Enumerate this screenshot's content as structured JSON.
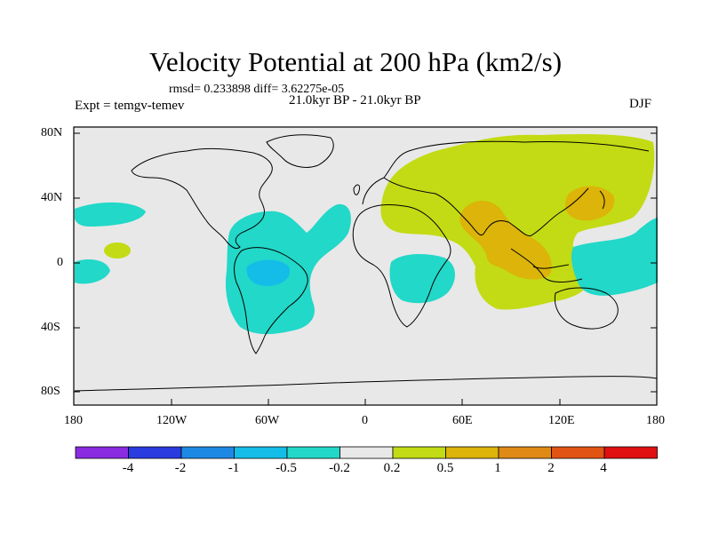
{
  "title": "Velocity Potential at 200 hPa (km2/s)",
  "stats": "rmsd= 0.233898 diff= 3.62275e-05",
  "experiment": "Expt = temgv-temev",
  "period": "21.0kyr BP - 21.0kyr BP",
  "season": "DJF",
  "lat_labels": [
    "80N",
    "40N",
    "0",
    "40S",
    "80S"
  ],
  "lon_labels": [
    "180",
    "120W",
    "60W",
    "0",
    "60E",
    "120E",
    "180"
  ],
  "colorbar": {
    "colors": [
      "#8a2be2",
      "#2a3ce0",
      "#1e88e5",
      "#14bde8",
      "#22d8c8",
      "#e8e8e8",
      "#c2db14",
      "#dcb40a",
      "#e08a16",
      "#e25414",
      "#e01010"
    ],
    "labels": [
      "-4",
      "-2",
      "-1",
      "-0.5",
      "-0.2",
      "0.2",
      "0.5",
      "1",
      "2",
      "4"
    ]
  },
  "land_color": "#e8e8e8"
}
